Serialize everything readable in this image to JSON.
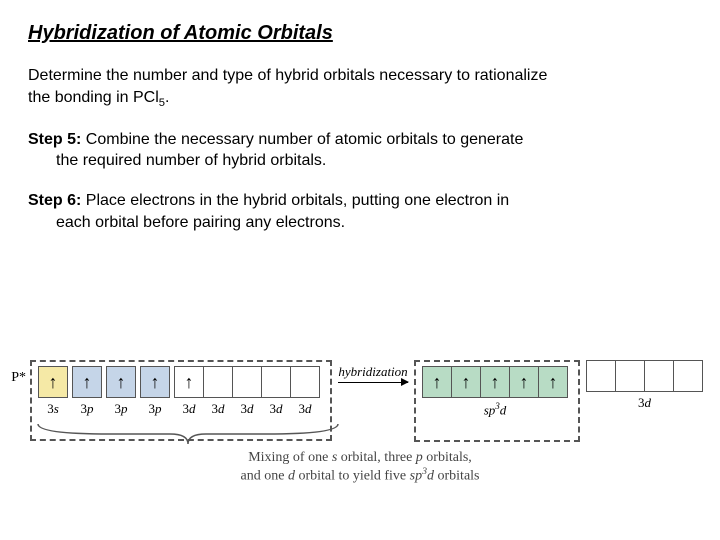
{
  "title": "Hybridization of Atomic Orbitals",
  "problem_l1": "Determine the number and type of hybrid orbitals necessary to rationalize",
  "problem_l2_pre": "the bonding in PCl",
  "problem_l2_sub": "5",
  "problem_l2_post": ".",
  "step5": {
    "label": "Step 5:",
    "l1": "  Combine the necessary number of atomic orbitals to generate",
    "l2": "the required number of hybrid orbitals."
  },
  "step6": {
    "label": "Step 6:",
    "l1": "  Place electrons in the hybrid orbitals, putting one electron in",
    "l2": "each orbital before pairing any electrons."
  },
  "diagram": {
    "p_label": "P*",
    "arrow_label": "hybridization",
    "colors": {
      "s": "#f5e9a6",
      "p": "#c5d5e8",
      "d": "#ffffff",
      "hybrid": "#b8dcc5",
      "d_right": "#ffffff",
      "border": "#555555",
      "dash": "#555555"
    },
    "left": [
      {
        "cells": [
          {
            "fill": "yellow",
            "e": "↑"
          }
        ],
        "label_n": "3",
        "label_l": "s"
      },
      {
        "cells": [
          {
            "fill": "blue",
            "e": "↑"
          }
        ],
        "label_n": "3",
        "label_l": "p"
      },
      {
        "cells": [
          {
            "fill": "blue",
            "e": "↑"
          }
        ],
        "label_n": "3",
        "label_l": "p"
      },
      {
        "cells": [
          {
            "fill": "blue",
            "e": "↑"
          }
        ],
        "label_n": "3",
        "label_l": "p"
      },
      {
        "cells": [
          {
            "fill": "",
            "e": "↑"
          },
          {
            "fill": "",
            "e": ""
          },
          {
            "fill": "",
            "e": ""
          },
          {
            "fill": "",
            "e": ""
          },
          {
            "fill": "",
            "e": ""
          }
        ],
        "label_n": "3",
        "label_l": "d",
        "multi_labels": [
          "3d",
          "3d",
          "3d",
          "3d",
          "3d"
        ]
      }
    ],
    "right_hybrid": {
      "cells": [
        {
          "fill": "green",
          "e": "↑"
        },
        {
          "fill": "green",
          "e": "↑"
        },
        {
          "fill": "green",
          "e": "↑"
        },
        {
          "fill": "green",
          "e": "↑"
        },
        {
          "fill": "green",
          "e": "↑"
        }
      ],
      "label_html": "sp³d",
      "label_parts": {
        "s": "sp",
        "sup": "3",
        "d": "d"
      }
    },
    "right_d": {
      "cells": [
        {
          "fill": "",
          "e": ""
        },
        {
          "fill": "",
          "e": ""
        },
        {
          "fill": "",
          "e": ""
        },
        {
          "fill": "",
          "e": ""
        }
      ],
      "label_n": "3",
      "label_l": "d"
    },
    "caption_l1_pre": "Mixing of one ",
    "caption_l1_s": "s",
    "caption_l1_mid": " orbital, three ",
    "caption_l1_p": "p",
    "caption_l1_post": " orbitals,",
    "caption_l2_pre": "and one ",
    "caption_l2_d": "d",
    "caption_l2_mid": " orbital to yield five ",
    "caption_l2_sp": "sp",
    "caption_l2_sup": "3",
    "caption_l2_d2": "d",
    "caption_l2_post": " orbitals"
  }
}
